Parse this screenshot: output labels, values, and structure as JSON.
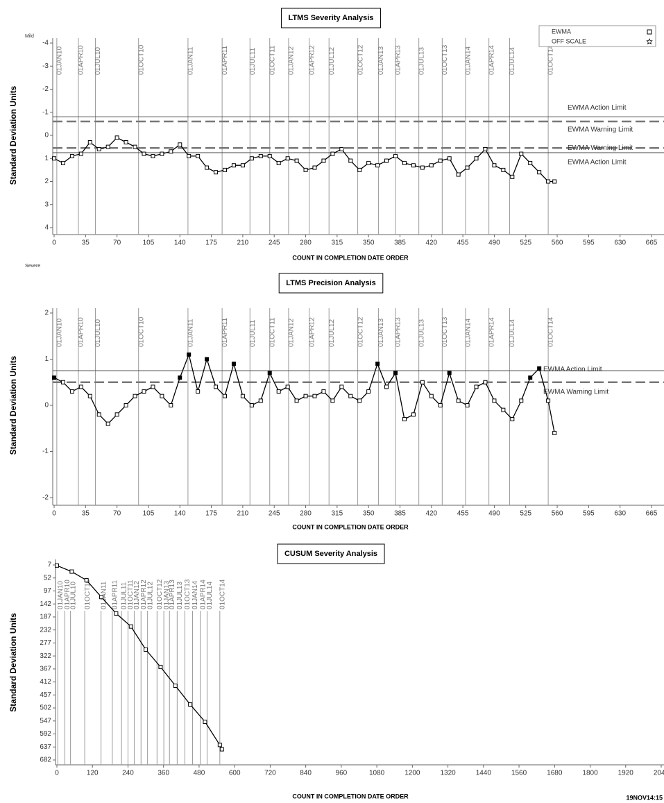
{
  "chart_data": [
    {
      "type": "line",
      "title": "LTMS Severity Analysis",
      "x_label": "COUNT IN COMPLETION DATE ORDER",
      "y_label": "Standard Deviation Units",
      "annotations": {
        "top": "Mild",
        "bottom": "Severe"
      },
      "y_reversed": true,
      "xlim": [
        0,
        665
      ],
      "ylim": [
        -4,
        4
      ],
      "xticks": [
        0,
        35,
        70,
        105,
        140,
        175,
        210,
        245,
        280,
        315,
        350,
        385,
        420,
        455,
        490,
        525,
        560,
        595,
        630,
        665
      ],
      "yticks": [
        -4,
        -3,
        -2,
        -1,
        0,
        1,
        2,
        3,
        4
      ],
      "x": [
        0,
        10,
        20,
        30,
        40,
        50,
        60,
        70,
        80,
        90,
        100,
        110,
        120,
        130,
        140,
        150,
        160,
        170,
        180,
        190,
        200,
        210,
        220,
        230,
        240,
        250,
        260,
        270,
        280,
        290,
        300,
        310,
        320,
        330,
        340,
        350,
        360,
        370,
        380,
        390,
        400,
        410,
        420,
        430,
        440,
        450,
        460,
        470,
        480,
        490,
        500,
        510,
        520,
        530,
        540,
        550,
        557
      ],
      "series": [
        {
          "color": "#000000",
          "values": [
            1.0,
            1.2,
            0.9,
            0.8,
            0.3,
            0.6,
            0.5,
            0.1,
            0.3,
            0.5,
            0.8,
            0.9,
            0.8,
            0.7,
            0.4,
            0.9,
            0.9,
            1.4,
            1.6,
            1.5,
            1.3,
            1.3,
            1.0,
            0.9,
            0.9,
            1.2,
            1.0,
            1.1,
            1.5,
            1.4,
            1.1,
            0.8,
            0.6,
            1.1,
            1.5,
            1.2,
            1.3,
            1.1,
            0.9,
            1.2,
            1.3,
            1.4,
            1.3,
            1.1,
            1.0,
            1.7,
            1.4,
            1.0,
            0.6,
            1.3,
            1.5,
            1.8,
            0.8,
            1.2,
            1.6,
            2.0,
            2.0
          ]
        }
      ],
      "limits": [
        {
          "value": -0.8,
          "label": "EWMA Action Limit",
          "style": "solid"
        },
        {
          "value": -0.6,
          "label": "EWMA Warning Limit",
          "style": "dashed"
        },
        {
          "value": 0.55,
          "label": "EWMA Warning Limit",
          "style": "dashed"
        },
        {
          "value": 0.75,
          "label": "EWMA Action Limit",
          "style": "solid"
        }
      ],
      "legend": {
        "position": "top-right",
        "entries": [
          {
            "label": "EWMA",
            "symbol": "square"
          },
          {
            "label": "OFF SCALE",
            "symbol": "star"
          }
        ]
      },
      "date_markers": [
        {
          "x": 3,
          "label": "01JAN10"
        },
        {
          "x": 27,
          "label": "01APR10"
        },
        {
          "x": 46,
          "label": "01JUL10"
        },
        {
          "x": 94,
          "label": "01OCT10"
        },
        {
          "x": 149,
          "label": "01JAN11"
        },
        {
          "x": 187,
          "label": "01APR11"
        },
        {
          "x": 218,
          "label": "01JUL11"
        },
        {
          "x": 240,
          "label": "01OCT11"
        },
        {
          "x": 261,
          "label": "01JAN12"
        },
        {
          "x": 284,
          "label": "01APR12"
        },
        {
          "x": 306,
          "label": "01JUL12"
        },
        {
          "x": 338,
          "label": "01OCT12"
        },
        {
          "x": 361,
          "label": "01JAN13"
        },
        {
          "x": 380,
          "label": "01APR13"
        },
        {
          "x": 406,
          "label": "01JUL13"
        },
        {
          "x": 432,
          "label": "01OCT13"
        },
        {
          "x": 458,
          "label": "01JAN14"
        },
        {
          "x": 484,
          "label": "01APR14"
        },
        {
          "x": 507,
          "label": "01JUL14"
        },
        {
          "x": 550,
          "label": "01OCT14"
        }
      ]
    },
    {
      "type": "line",
      "title": "LTMS Precision Analysis",
      "x_label": "COUNT IN COMPLETION DATE ORDER",
      "y_label": "Standard Deviation Units",
      "y_reversed": false,
      "xlim": [
        0,
        665
      ],
      "ylim": [
        -2,
        2
      ],
      "xticks": [
        0,
        35,
        70,
        105,
        140,
        175,
        210,
        245,
        280,
        315,
        350,
        385,
        420,
        455,
        490,
        525,
        560,
        595,
        630,
        665
      ],
      "yticks": [
        -2,
        -1,
        0,
        1,
        2
      ],
      "x": [
        0,
        10,
        20,
        30,
        40,
        50,
        60,
        70,
        80,
        90,
        100,
        110,
        120,
        130,
        140,
        150,
        160,
        170,
        180,
        190,
        200,
        210,
        220,
        230,
        240,
        250,
        260,
        270,
        280,
        290,
        300,
        310,
        320,
        330,
        340,
        350,
        360,
        370,
        380,
        390,
        400,
        410,
        420,
        430,
        440,
        450,
        460,
        470,
        480,
        490,
        500,
        510,
        520,
        530,
        540,
        550,
        557
      ],
      "series": [
        {
          "color": "#000000",
          "values": [
            0.6,
            0.5,
            0.3,
            0.4,
            0.2,
            -0.2,
            -0.4,
            -0.2,
            0.0,
            0.2,
            0.3,
            0.4,
            0.2,
            0.0,
            0.6,
            1.1,
            0.3,
            1.0,
            0.4,
            0.2,
            0.9,
            0.2,
            0.0,
            0.1,
            0.7,
            0.3,
            0.4,
            0.1,
            0.2,
            0.2,
            0.3,
            0.1,
            0.4,
            0.2,
            0.1,
            0.3,
            0.9,
            0.4,
            0.7,
            -0.3,
            -0.2,
            0.5,
            0.2,
            0.0,
            0.7,
            0.1,
            0.0,
            0.4,
            0.5,
            0.1,
            -0.1,
            -0.3,
            0.1,
            0.6,
            0.8,
            0.1,
            -0.6
          ]
        }
      ],
      "limits": [
        {
          "value": 0.75,
          "label": "EWMA Action Limit",
          "style": "solid"
        },
        {
          "value": 0.5,
          "label": "EWMA Warning Limit",
          "style": "dashed"
        }
      ],
      "date_markers": [
        {
          "x": 3,
          "label": "01JAN10"
        },
        {
          "x": 27,
          "label": "01APR10"
        },
        {
          "x": 46,
          "label": "01JUL10"
        },
        {
          "x": 94,
          "label": "01OCT10"
        },
        {
          "x": 149,
          "label": "01JAN11"
        },
        {
          "x": 187,
          "label": "01APR11"
        },
        {
          "x": 218,
          "label": "01JUL11"
        },
        {
          "x": 240,
          "label": "01OCT11"
        },
        {
          "x": 261,
          "label": "01JAN12"
        },
        {
          "x": 284,
          "label": "01APR12"
        },
        {
          "x": 306,
          "label": "01JUL12"
        },
        {
          "x": 338,
          "label": "01OCT12"
        },
        {
          "x": 361,
          "label": "01JAN13"
        },
        {
          "x": 380,
          "label": "01APR13"
        },
        {
          "x": 406,
          "label": "01JUL13"
        },
        {
          "x": 432,
          "label": "01OCT13"
        },
        {
          "x": 458,
          "label": "01JAN14"
        },
        {
          "x": 484,
          "label": "01APR14"
        },
        {
          "x": 507,
          "label": "01JUL14"
        },
        {
          "x": 550,
          "label": "01OCT14"
        }
      ]
    },
    {
      "type": "line",
      "title": "CUSUM Severity Analysis",
      "x_label": "COUNT IN COMPLETION DATE ORDER",
      "y_label": "Standard Deviation Units",
      "y_reversed": true,
      "xlim": [
        0,
        2040
      ],
      "ylim": [
        7,
        682
      ],
      "xticks": [
        0,
        120,
        240,
        360,
        480,
        600,
        720,
        840,
        960,
        1080,
        1200,
        1320,
        1440,
        1560,
        1680,
        1800,
        1920,
        2040
      ],
      "yticks": [
        7,
        52,
        97,
        142,
        187,
        232,
        277,
        322,
        367,
        412,
        457,
        502,
        547,
        592,
        637,
        682
      ],
      "x": [
        0,
        50,
        100,
        150,
        200,
        250,
        300,
        350,
        400,
        450,
        500,
        550,
        557
      ],
      "series": [
        {
          "color": "#000000",
          "values": [
            9,
            30,
            60,
            118,
            175,
            220,
            300,
            360,
            425,
            490,
            550,
            630,
            645
          ]
        }
      ],
      "date_markers": [
        {
          "x": 3,
          "label": "01JAN10"
        },
        {
          "x": 27,
          "label": "01APR10"
        },
        {
          "x": 46,
          "label": "01JUL10"
        },
        {
          "x": 94,
          "label": "01OCT10"
        },
        {
          "x": 149,
          "label": "01JAN11"
        },
        {
          "x": 187,
          "label": "01APR11"
        },
        {
          "x": 218,
          "label": "01JUL11"
        },
        {
          "x": 240,
          "label": "01OCT11"
        },
        {
          "x": 261,
          "label": "01JAN12"
        },
        {
          "x": 284,
          "label": "01APR12"
        },
        {
          "x": 306,
          "label": "01JUL12"
        },
        {
          "x": 338,
          "label": "01OCT12"
        },
        {
          "x": 361,
          "label": "01JAN13"
        },
        {
          "x": 380,
          "label": "01APR13"
        },
        {
          "x": 406,
          "label": "01JUL13"
        },
        {
          "x": 432,
          "label": "01OCT13"
        },
        {
          "x": 458,
          "label": "01JAN14"
        },
        {
          "x": 484,
          "label": "01APR14"
        },
        {
          "x": 507,
          "label": "01JUL14"
        },
        {
          "x": 550,
          "label": "01OCT14"
        }
      ]
    }
  ],
  "footer": "19NOV14:15"
}
